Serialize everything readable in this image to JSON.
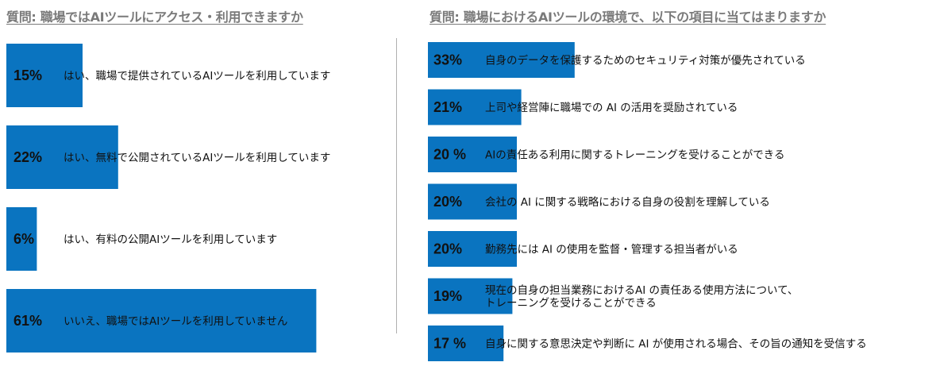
{
  "chart_data": [
    {
      "type": "bar",
      "orientation": "horizontal",
      "title": "質問: 職場ではAIツールにアクセス・利用できますか",
      "categories": [
        "はい、職場で提供されているAIツールを利用しています",
        "はい、無料で公開されているAIツールを利用しています",
        "はい、有料の公開AIツールを利用しています",
        "いいえ、職場ではAIツールを利用していません"
      ],
      "values": [
        15,
        22,
        6,
        61
      ],
      "value_labels": [
        "15%",
        "22%",
        "6%",
        "61%"
      ],
      "xlim": [
        0,
        100
      ],
      "xlabel": "",
      "ylabel": "",
      "grid": false,
      "colors": {
        "bar": "#0a74c0"
      }
    },
    {
      "type": "bar",
      "orientation": "horizontal",
      "title": "質問: 職場におけるAIツールの環境で、以下の項目に当てはまりますか",
      "categories": [
        [
          "自身のデータを保護するためのセキュリティ対策が優先されている"
        ],
        [
          "上司や経営陣に職場での AI の活用を奨励されている"
        ],
        [
          "AIの責任ある利用に関するトレーニングを受けることができる"
        ],
        [
          "会社の AI に関する戦略における自身の役割を理解している"
        ],
        [
          "勤務先には AI の使用を監督・管理する担当者がいる"
        ],
        [
          "現在の自身の担当業務におけるAI の責任ある使用方法について、",
          "トレーニングを受けることができる"
        ],
        [
          "自身に関する意思決定や判断に AI が使用される場合、その旨の通知を受信する"
        ]
      ],
      "values": [
        33,
        21,
        20,
        20,
        20,
        19,
        17
      ],
      "value_labels": [
        "33%",
        "21%",
        "20 %",
        "20%",
        "20%",
        "19%",
        "17 %"
      ],
      "xlim": [
        0,
        100
      ],
      "xlabel": "",
      "ylabel": "",
      "grid": false,
      "colors": {
        "bar": "#0a74c0"
      }
    }
  ]
}
